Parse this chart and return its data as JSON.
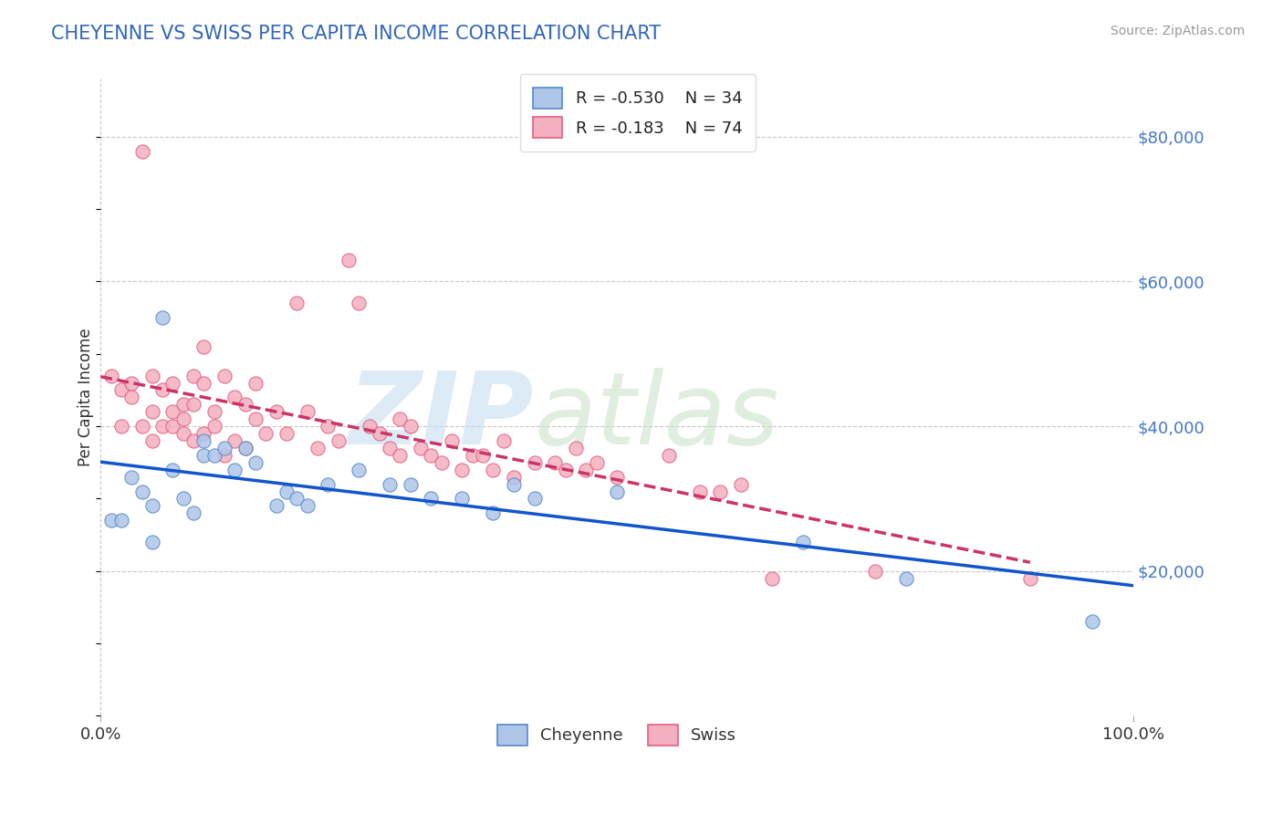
{
  "title": "CHEYENNE VS SWISS PER CAPITA INCOME CORRELATION CHART",
  "source_text": "Source: ZipAtlas.com",
  "ylabel": "Per Capita Income",
  "xlim": [
    0,
    1
  ],
  "ylim": [
    0,
    88000
  ],
  "bg_color": "#ffffff",
  "grid_color": "#c8c8c8",
  "cheyenne_color": "#aec6e8",
  "swiss_color": "#f4afc0",
  "cheyenne_edge_color": "#5588cc",
  "swiss_edge_color": "#e06080",
  "cheyenne_line_color": "#1155cc",
  "swiss_line_color": "#cc3366",
  "cheyenne_R": -0.53,
  "cheyenne_N": 34,
  "swiss_R": -0.183,
  "swiss_N": 74,
  "cheyenne_x": [
    0.01,
    0.02,
    0.03,
    0.04,
    0.05,
    0.05,
    0.06,
    0.07,
    0.08,
    0.09,
    0.1,
    0.1,
    0.11,
    0.12,
    0.13,
    0.14,
    0.15,
    0.17,
    0.18,
    0.19,
    0.2,
    0.22,
    0.25,
    0.28,
    0.3,
    0.32,
    0.35,
    0.38,
    0.4,
    0.42,
    0.5,
    0.68,
    0.78,
    0.96
  ],
  "cheyenne_y": [
    27000,
    27000,
    33000,
    31000,
    29000,
    24000,
    55000,
    34000,
    30000,
    28000,
    38000,
    36000,
    36000,
    37000,
    34000,
    37000,
    35000,
    29000,
    31000,
    30000,
    29000,
    32000,
    34000,
    32000,
    32000,
    30000,
    30000,
    28000,
    32000,
    30000,
    31000,
    24000,
    19000,
    13000
  ],
  "swiss_x": [
    0.01,
    0.02,
    0.02,
    0.03,
    0.03,
    0.04,
    0.04,
    0.05,
    0.05,
    0.05,
    0.06,
    0.06,
    0.07,
    0.07,
    0.07,
    0.08,
    0.08,
    0.08,
    0.09,
    0.09,
    0.09,
    0.1,
    0.1,
    0.1,
    0.11,
    0.11,
    0.12,
    0.12,
    0.13,
    0.13,
    0.14,
    0.14,
    0.15,
    0.15,
    0.16,
    0.17,
    0.18,
    0.19,
    0.2,
    0.21,
    0.22,
    0.23,
    0.24,
    0.25,
    0.26,
    0.27,
    0.28,
    0.29,
    0.29,
    0.3,
    0.31,
    0.32,
    0.33,
    0.34,
    0.35,
    0.36,
    0.37,
    0.38,
    0.39,
    0.4,
    0.42,
    0.44,
    0.45,
    0.46,
    0.47,
    0.48,
    0.5,
    0.55,
    0.58,
    0.6,
    0.62,
    0.65,
    0.75,
    0.9
  ],
  "swiss_y": [
    47000,
    45000,
    40000,
    46000,
    44000,
    78000,
    40000,
    38000,
    47000,
    42000,
    45000,
    40000,
    42000,
    46000,
    40000,
    43000,
    41000,
    39000,
    47000,
    43000,
    38000,
    46000,
    51000,
    39000,
    42000,
    40000,
    47000,
    36000,
    44000,
    38000,
    43000,
    37000,
    41000,
    46000,
    39000,
    42000,
    39000,
    57000,
    42000,
    37000,
    40000,
    38000,
    63000,
    57000,
    40000,
    39000,
    37000,
    41000,
    36000,
    40000,
    37000,
    36000,
    35000,
    38000,
    34000,
    36000,
    36000,
    34000,
    38000,
    33000,
    35000,
    35000,
    34000,
    37000,
    34000,
    35000,
    33000,
    36000,
    31000,
    31000,
    32000,
    19000,
    20000,
    19000
  ]
}
